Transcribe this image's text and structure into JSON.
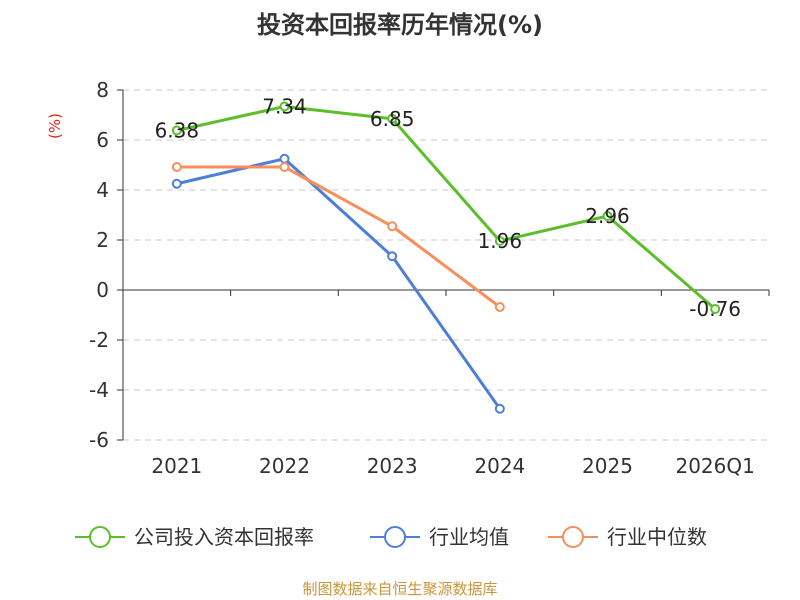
{
  "chart_data": {
    "type": "line",
    "title": "投资本回报率历年情况(%)",
    "ylabel": "(%)",
    "xlabel": "",
    "categories": [
      "2021",
      "2022",
      "2023",
      "2024",
      "2025",
      "2026Q1"
    ],
    "ylim": [
      -6,
      8
    ],
    "yticks": [
      8,
      6,
      4,
      2,
      0,
      -2,
      -4,
      -6
    ],
    "grid": true,
    "legend_position": "bottom",
    "series": [
      {
        "name": "公司投入资本回报率",
        "color": "#5cbf2a",
        "values": [
          6.38,
          7.34,
          6.85,
          1.96,
          2.96,
          -0.76
        ],
        "labels": [
          "6.38",
          "7.34",
          "6.85",
          "1.96",
          "2.96",
          "-0.76"
        ]
      },
      {
        "name": "行业均值",
        "color": "#4e7fd8",
        "values": [
          4.25,
          5.25,
          1.35,
          -4.75,
          null,
          null
        ]
      },
      {
        "name": "行业中位数",
        "color": "#f78f5c",
        "values": [
          4.92,
          4.92,
          2.55,
          -0.68,
          null,
          null
        ]
      }
    ],
    "source": "制图数据来自恒生聚源数据库"
  }
}
